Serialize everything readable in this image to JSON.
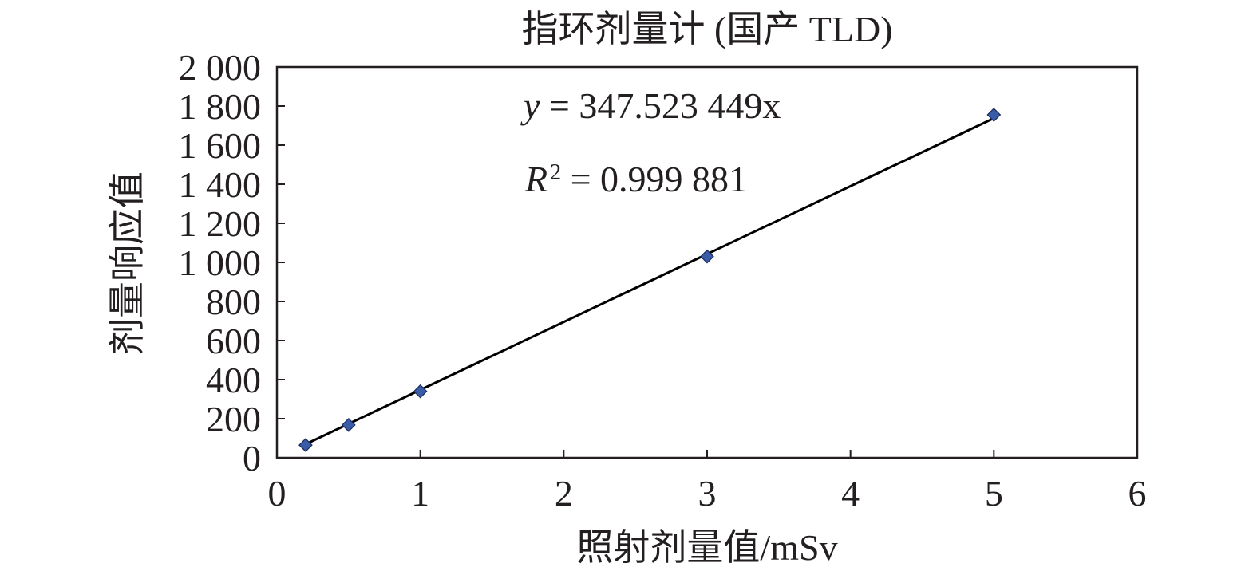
{
  "chart_data": {
    "type": "scatter",
    "title": "指环剂量计 (国产 TLD)",
    "xlabel": "照射剂量值/mSv",
    "ylabel": "剂量响应值",
    "xlim": [
      0,
      6
    ],
    "ylim": [
      0,
      2000
    ],
    "x_ticks": [
      0,
      1,
      2,
      3,
      4,
      5,
      6
    ],
    "x_tick_labels": [
      "0",
      "1",
      "2",
      "3",
      "4",
      "5",
      "6"
    ],
    "y_ticks": [
      0,
      200,
      400,
      600,
      800,
      1000,
      1200,
      1400,
      1600,
      1800,
      2000
    ],
    "y_tick_labels": [
      "0",
      "200",
      "400",
      "600",
      "800",
      "1 000",
      "1 200",
      "1 400",
      "1 600",
      "1 800",
      "2 000"
    ],
    "grid": false,
    "series": [
      {
        "points": [
          {
            "x": 0.2,
            "y": 65
          },
          {
            "x": 0.5,
            "y": 168
          },
          {
            "x": 1,
            "y": 340
          },
          {
            "x": 3,
            "y": 1030
          },
          {
            "x": 5,
            "y": 1755
          }
        ],
        "marker": "diamond",
        "color": "#3a5ca8"
      }
    ],
    "trendline": {
      "slope": 347.523449,
      "intercept": 0,
      "x_range": [
        0.2,
        5
      ],
      "color": "#000000"
    },
    "annotations": {
      "equation_var": "y",
      "equation_rest": " = 347.523 449x",
      "r2_var": "R",
      "r2_exp": "2",
      "r2_rest": " = 0.999 881"
    }
  }
}
